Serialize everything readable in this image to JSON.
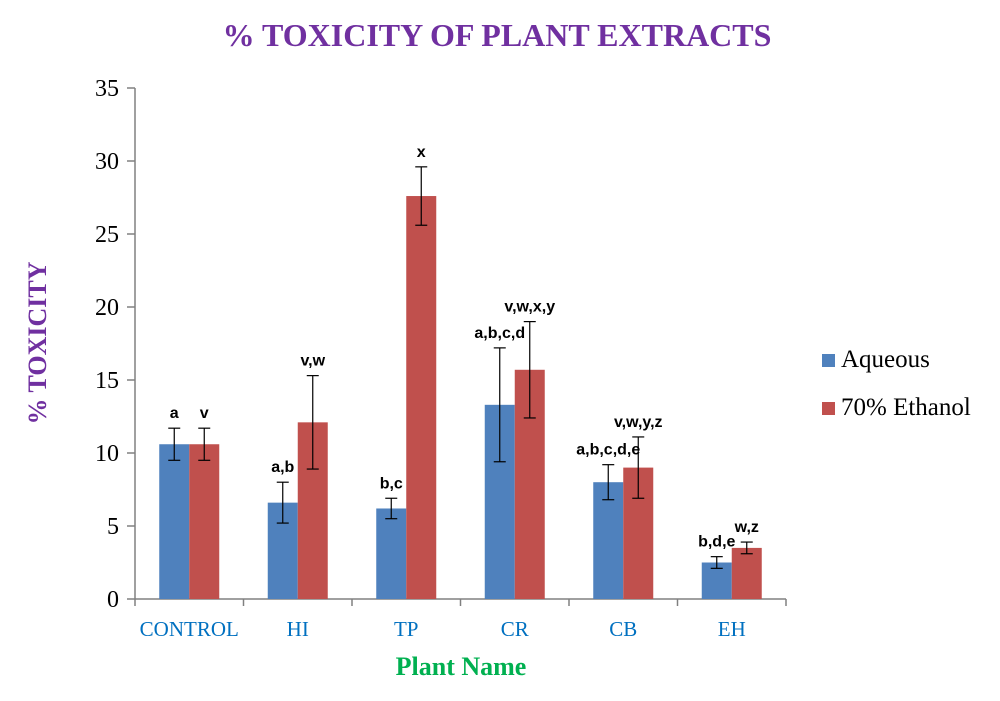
{
  "chart_data": {
    "type": "bar",
    "title": "% TOXICITY  OF PLANT EXTRACTS",
    "xlabel": "Plant Name",
    "ylabel": "% TOXICITY",
    "ylim": [
      0,
      35
    ],
    "yticks": [
      0,
      5,
      10,
      15,
      20,
      25,
      30,
      35
    ],
    "grid": false,
    "legend_position": "right",
    "categories": [
      "CONTROL",
      "HI",
      "TP",
      "CR",
      "CB",
      "EH"
    ],
    "series": [
      {
        "name": "Aqueous",
        "color": "#4f81bd",
        "values": [
          10.6,
          6.6,
          6.2,
          13.3,
          8.0,
          2.5
        ],
        "errors": [
          1.1,
          1.4,
          0.7,
          3.9,
          1.2,
          0.4
        ],
        "labels": [
          "a",
          "a,b",
          "b,c",
          "a,b,c,d",
          "a,b,c,d,e",
          "b,d,e"
        ]
      },
      {
        "name": "70% Ethanol",
        "color": "#c0504d",
        "values": [
          10.6,
          12.1,
          27.6,
          15.7,
          9.0,
          3.5
        ],
        "errors": [
          1.1,
          3.2,
          2.0,
          3.3,
          2.1,
          0.4
        ],
        "labels": [
          "v",
          "v,w",
          "x",
          "v,w,x,y",
          "v,w,y,z",
          "w,z"
        ]
      }
    ],
    "colors": {
      "title": "#7030a0",
      "ylabel": "#7030a0",
      "xlabel": "#00b050",
      "xtick": "#0070c0",
      "axis": "#808080"
    }
  }
}
